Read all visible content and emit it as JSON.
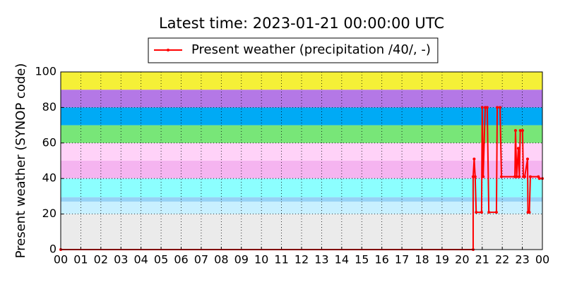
{
  "chart_data": {
    "type": "line",
    "title": "Latest time: 2023-01-21 00:00:00 UTC",
    "y_label": "Present weather (SYNOP code)",
    "xlim": [
      0,
      24
    ],
    "ylim": [
      0,
      100
    ],
    "xticks": [
      {
        "value": 0,
        "label": "00"
      },
      {
        "value": 1,
        "label": "01"
      },
      {
        "value": 2,
        "label": "02"
      },
      {
        "value": 3,
        "label": "03"
      },
      {
        "value": 4,
        "label": "04"
      },
      {
        "value": 5,
        "label": "05"
      },
      {
        "value": 6,
        "label": "06"
      },
      {
        "value": 7,
        "label": "07"
      },
      {
        "value": 8,
        "label": "08"
      },
      {
        "value": 9,
        "label": "09"
      },
      {
        "value": 10,
        "label": "10"
      },
      {
        "value": 11,
        "label": "11"
      },
      {
        "value": 12,
        "label": "12"
      },
      {
        "value": 13,
        "label": "13"
      },
      {
        "value": 14,
        "label": "14"
      },
      {
        "value": 15,
        "label": "15"
      },
      {
        "value": 16,
        "label": "16"
      },
      {
        "value": 17,
        "label": "17"
      },
      {
        "value": 18,
        "label": "18"
      },
      {
        "value": 19,
        "label": "19"
      },
      {
        "value": 20,
        "label": "20"
      },
      {
        "value": 21,
        "label": "21"
      },
      {
        "value": 22,
        "label": "22"
      },
      {
        "value": 23,
        "label": "23"
      },
      {
        "value": 24,
        "label": "00"
      }
    ],
    "yticks": [
      0,
      20,
      40,
      60,
      80,
      100
    ],
    "grid": true,
    "legend": "top",
    "bands": [
      {
        "from": 0,
        "to": 20,
        "color": "#ebebeb"
      },
      {
        "from": 20,
        "to": 27,
        "color": "#c8f0ff"
      },
      {
        "from": 27,
        "to": 29.5,
        "color": "#96d2f5"
      },
      {
        "from": 29.5,
        "to": 40,
        "color": "#8cffff"
      },
      {
        "from": 40,
        "to": 50,
        "color": "#f5b4f0"
      },
      {
        "from": 50,
        "to": 60,
        "color": "#ffd2f8"
      },
      {
        "from": 60,
        "to": 70,
        "color": "#78e678"
      },
      {
        "from": 70,
        "to": 80,
        "color": "#00aaf5"
      },
      {
        "from": 80,
        "to": 90,
        "color": "#b478e6"
      },
      {
        "from": 90,
        "to": 100,
        "color": "#f5f037"
      }
    ],
    "x": [
      0,
      20.55,
      20.55,
      20.6,
      20.65,
      20.7,
      20.97,
      21.0,
      21.05,
      21.15,
      21.25,
      21.33,
      21.71,
      21.75,
      21.89,
      21.96,
      22.63,
      22.66,
      22.72,
      22.8,
      22.85,
      22.9,
      23.01,
      23.05,
      23.12,
      23.26,
      23.28,
      23.35,
      23.4,
      23.8,
      23.85,
      24
    ],
    "series": [
      {
        "name": "Present weather (precipitation /40/, -)",
        "color": "#ff0000",
        "values": [
          0,
          0,
          41,
          51,
          41,
          21,
          21,
          80,
          41,
          80,
          80,
          21,
          21,
          80,
          80,
          41,
          41,
          67,
          41,
          57,
          41,
          67,
          67,
          41,
          41,
          51,
          21,
          21,
          41,
          41,
          40,
          40
        ]
      }
    ]
  }
}
